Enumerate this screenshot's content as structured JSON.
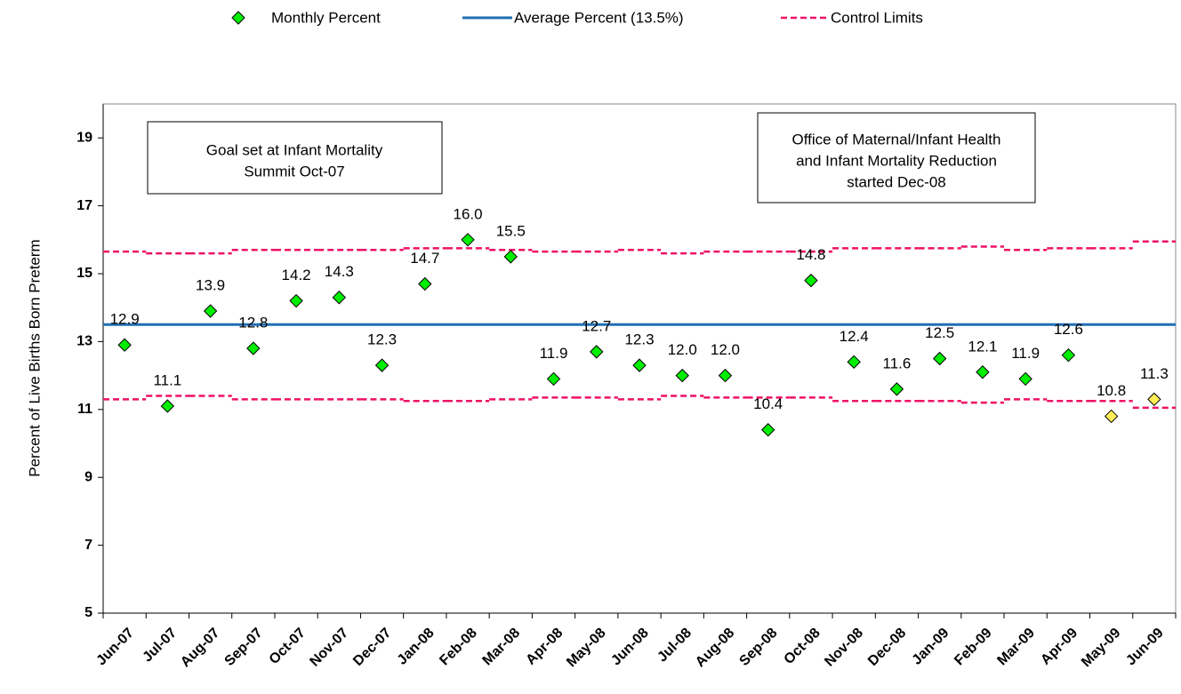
{
  "chart_data": {
    "type": "scatter",
    "ylabel": "Percent of Live Births Born Preterm",
    "categories": [
      "Jun-07",
      "Jul-07",
      "Aug-07",
      "Sep-07",
      "Oct-07",
      "Nov-07",
      "Dec-07",
      "Jan-08",
      "Feb-08",
      "Mar-08",
      "Apr-08",
      "May-08",
      "Jun-08",
      "Jul-08",
      "Aug-08",
      "Sep-08",
      "Oct-08",
      "Nov-08",
      "Dec-08",
      "Jan-09",
      "Feb-09",
      "Mar-09",
      "Apr-09",
      "May-09",
      "Jun-09"
    ],
    "ylim": [
      5,
      20
    ],
    "yticks": [
      5,
      7,
      9,
      11,
      13,
      15,
      17,
      19
    ],
    "series": [
      {
        "name": "Monthly Percent",
        "color": "#00ee00",
        "values": [
          12.9,
          11.1,
          13.9,
          12.8,
          14.2,
          14.3,
          12.3,
          14.7,
          16.0,
          15.5,
          11.9,
          12.7,
          12.3,
          12.0,
          12.0,
          10.4,
          14.8,
          12.4,
          11.6,
          12.5,
          12.1,
          11.9,
          12.6,
          10.8,
          11.3
        ],
        "value_labels": [
          "12.9",
          "11.1",
          "13.9",
          "12.8",
          "14.2",
          "14.3",
          "12.3",
          "14.7",
          "16.0",
          "15.5",
          "11.9",
          "12.7",
          "12.3",
          "12.0",
          "12.0",
          "10.4",
          "14.8",
          "12.4",
          "11.6",
          "12.5",
          "12.1",
          "11.9",
          "12.6",
          "10.8",
          "11.3"
        ],
        "point_colors": [
          "#00ee00",
          "#00ee00",
          "#00ee00",
          "#00ee00",
          "#00ee00",
          "#00ee00",
          "#00ee00",
          "#00ee00",
          "#00ee00",
          "#00ee00",
          "#00ee00",
          "#00ee00",
          "#00ee00",
          "#00ee00",
          "#00ee00",
          "#00ee00",
          "#00ee00",
          "#00ee00",
          "#00ee00",
          "#00ee00",
          "#00ee00",
          "#00ee00",
          "#00ee00",
          "#ffee55",
          "#ffee55"
        ]
      },
      {
        "name": "Average Percent (13.5%)",
        "color": "#1f6fb5",
        "value": 13.5
      },
      {
        "name": "Control Limits",
        "color": "#ee1166",
        "upper": [
          15.65,
          15.6,
          15.6,
          15.7,
          15.7,
          15.7,
          15.7,
          15.75,
          15.75,
          15.7,
          15.65,
          15.65,
          15.7,
          15.6,
          15.65,
          15.65,
          15.65,
          15.75,
          15.75,
          15.75,
          15.8,
          15.7,
          15.75,
          15.75,
          15.95
        ],
        "lower": [
          11.3,
          11.4,
          11.4,
          11.3,
          11.3,
          11.3,
          11.3,
          11.25,
          11.25,
          11.3,
          11.35,
          11.35,
          11.3,
          11.4,
          11.35,
          11.35,
          11.35,
          11.25,
          11.25,
          11.25,
          11.2,
          11.3,
          11.25,
          11.25,
          11.05
        ]
      }
    ],
    "annotations": [
      {
        "lines": [
          "Goal set at Infant Mortality",
          "Summit Oct-07"
        ]
      },
      {
        "lines": [
          "Office of Maternal/Infant Health",
          "and Infant Mortality Reduction",
          "started Dec-08"
        ]
      }
    ]
  }
}
